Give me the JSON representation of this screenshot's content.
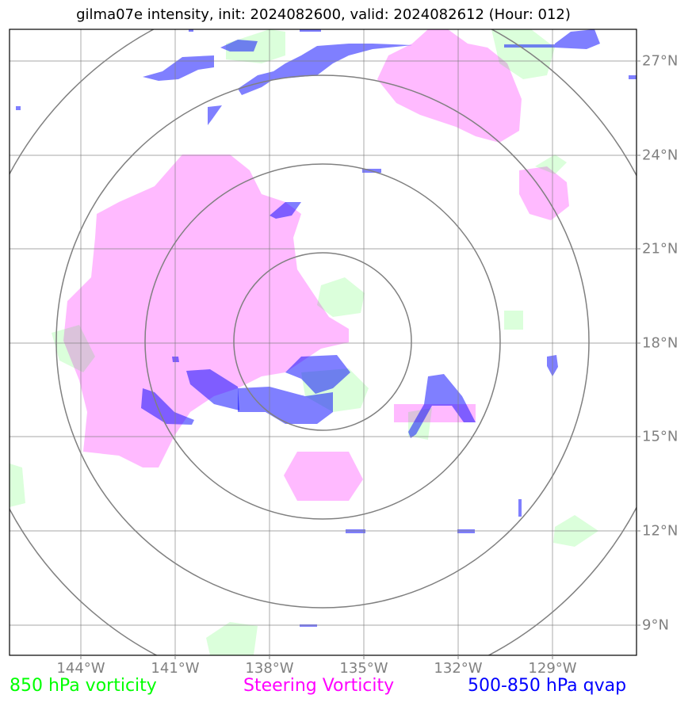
{
  "title": "gilma07e intensity, init: 2024082600, valid: 2024082612 (Hour: 012)",
  "colors": {
    "vort850": "#00ff00",
    "steering": "#ff00ff",
    "qvap": "#0000ff",
    "grid": "#808080",
    "rings": "#808080"
  },
  "axes": {
    "lon_ticks": [
      "144°W",
      "141°W",
      "138°W",
      "135°W",
      "132°W",
      "129°W"
    ],
    "lat_ticks": [
      "27°N",
      "24°N",
      "21°N",
      "18°N",
      "15°N",
      "12°N",
      "9°N"
    ]
  },
  "legend": [
    {
      "label": "850 hPa vorticity",
      "color": "#00ff00"
    },
    {
      "label": "Steering Vorticity",
      "color": "#ff00ff"
    },
    {
      "label": "500-850 hPa qvap",
      "color": "#0000ff"
    }
  ],
  "map": {
    "center": "18°N 136.5°W",
    "range_rings": 4,
    "lon_range": [
      "146.3°W",
      "126.3°W"
    ],
    "lat_range": [
      "8°N",
      "28°N"
    ],
    "legend_placement": "bottom"
  }
}
